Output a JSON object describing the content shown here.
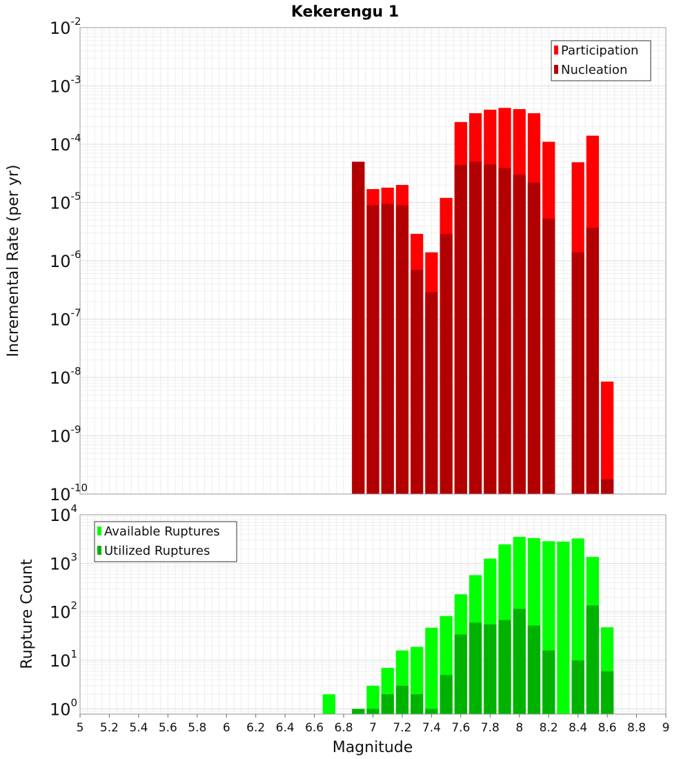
{
  "chart_data": [
    {
      "type": "bar",
      "title": "Kekerengu 1",
      "xlabel": "",
      "ylabel": "Incremental Rate (per yr)",
      "yscale": "log",
      "xlim": [
        5,
        9
      ],
      "ylim": [
        1e-10,
        0.01
      ],
      "yticks": [
        {
          "base": "10",
          "exp": "-2",
          "value": 0.01
        },
        {
          "base": "10",
          "exp": "-3",
          "value": 0.001
        },
        {
          "base": "10",
          "exp": "-4",
          "value": 0.0001
        },
        {
          "base": "10",
          "exp": "-5",
          "value": 1e-05
        },
        {
          "base": "10",
          "exp": "-6",
          "value": 1e-06
        },
        {
          "base": "10",
          "exp": "-7",
          "value": 1e-07
        },
        {
          "base": "10",
          "exp": "-8",
          "value": 1e-08
        },
        {
          "base": "10",
          "exp": "-9",
          "value": 1e-09
        },
        {
          "base": "10",
          "exp": "-10",
          "value": 1e-10
        }
      ],
      "grid": true,
      "legend_position": "top-right",
      "x": [
        6.9,
        7.0,
        7.1,
        7.2,
        7.3,
        7.4,
        7.5,
        7.6,
        7.7,
        7.8,
        7.9,
        8.0,
        8.1,
        8.2,
        8.3,
        8.4,
        8.5,
        8.6
      ],
      "series": [
        {
          "name": "Participation",
          "color": "#ff0000",
          "values": [
            5e-05,
            1.7e-05,
            1.8e-05,
            2e-05,
            2.9e-06,
            1.4e-06,
            1.2e-05,
            0.00024,
            0.00034,
            0.00039,
            0.00042,
            0.0004,
            0.00034,
            0.00011,
            null,
            4.9e-05,
            0.00014,
            8.5e-09
          ]
        },
        {
          "name": "Nucleation",
          "color": "#b20000",
          "values": [
            5e-05,
            9e-06,
            9.5e-06,
            9e-06,
            7e-07,
            2.9e-07,
            2.9e-06,
            4.4e-05,
            5e-05,
            4.5e-05,
            3.9e-05,
            3e-05,
            2.2e-05,
            5.3e-06,
            null,
            1.4e-06,
            3.7e-06,
            1.8e-10
          ]
        }
      ]
    },
    {
      "type": "bar",
      "title": "",
      "xlabel": "Magnitude",
      "ylabel": "Rupture Count",
      "yscale": "log",
      "xlim": [
        5,
        9
      ],
      "ylim": [
        0.78,
        10000.0
      ],
      "xticks": [
        "5",
        "5.2",
        "5.4",
        "5.6",
        "5.8",
        "6",
        "6.2",
        "6.4",
        "6.6",
        "6.8",
        "7",
        "7.2",
        "7.4",
        "7.6",
        "7.8",
        "8",
        "8.2",
        "8.4",
        "8.6",
        "8.8",
        "9"
      ],
      "yticks": [
        {
          "base": "10",
          "exp": "4",
          "value": 10000.0
        },
        {
          "base": "10",
          "exp": "3",
          "value": 1000.0
        },
        {
          "base": "10",
          "exp": "2",
          "value": 100.0
        },
        {
          "base": "10",
          "exp": "1",
          "value": 10.0
        },
        {
          "base": "10",
          "exp": "0",
          "value": 1
        }
      ],
      "grid": true,
      "legend_position": "top-left",
      "x": [
        6.7,
        6.9,
        7.0,
        7.1,
        7.2,
        7.3,
        7.4,
        7.5,
        7.6,
        7.7,
        7.8,
        7.9,
        8.0,
        8.1,
        8.2,
        8.3,
        8.4,
        8.5,
        8.6
      ],
      "series": [
        {
          "name": "Available Ruptures",
          "color": "#00ff00",
          "values": [
            2,
            1,
            3,
            7,
            16,
            19,
            47,
            82,
            230,
            570,
            1250,
            2450,
            3500,
            3300,
            2850,
            2800,
            3250,
            1350,
            48
          ]
        },
        {
          "name": "Utilized Ruptures",
          "color": "#00b200",
          "values": [
            null,
            1,
            1,
            2,
            3,
            2,
            1,
            5,
            34,
            60,
            55,
            68,
            115,
            52,
            16,
            null,
            10,
            135,
            6
          ]
        }
      ]
    }
  ]
}
